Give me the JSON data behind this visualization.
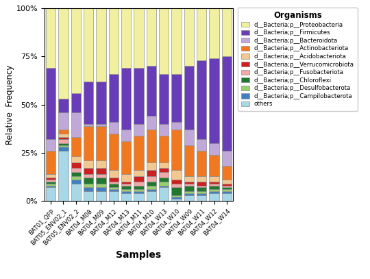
{
  "samples": [
    "BAT01_QFP",
    "BAT05_ENV02_1",
    "BAT05_ENV02_2",
    "BAT04_M08",
    "BAT04_M09",
    "BAT04_M12",
    "BAT04_M13",
    "BAT04_M11",
    "BAT04_M10",
    "BAT04_W13",
    "BAT04_W10",
    "BAT04_W09",
    "BAT04_W11",
    "BAT04_W12",
    "BAT04_W14"
  ],
  "organisms": [
    "d__Bacteria;p__Proteobacteria",
    "d__Bacteria;p__Firmicutes",
    "d__Bacteria;p__Bacteroidota",
    "d__Bacteria;p__Actinobacteriota",
    "d__Bacteria;p__Acidobacteriota",
    "d__Bacteria;p__Verrucomicrobiota",
    "d__Bacteria;p__Fusobacteriota",
    "d__Bacteria;p__Chloroflexi",
    "d__Bacteria;p__Desulfobacterota",
    "d__Bacteria;p__Campilobacterota",
    "others"
  ],
  "colors": [
    "#f0f0a0",
    "#6a3db8",
    "#c0a8d8",
    "#f07820",
    "#f0c890",
    "#cc2020",
    "#f0a8a8",
    "#207830",
    "#98d070",
    "#4080c0",
    "#a8d8e8"
  ],
  "stack_order": [
    "others",
    "d__Bacteria;p__Campilobacterota",
    "d__Bacteria;p__Desulfobacterota",
    "d__Bacteria;p__Chloroflexi",
    "d__Bacteria;p__Fusobacteriota",
    "d__Bacteria;p__Verrucomicrobiota",
    "d__Bacteria;p__Acidobacteriota",
    "d__Bacteria;p__Actinobacteriota",
    "d__Bacteria;p__Bacteroidota",
    "d__Bacteria;p__Firmicutes",
    "d__Bacteria;p__Proteobacteria"
  ],
  "data": {
    "d__Bacteria;p__Proteobacteria": [
      0.31,
      0.47,
      0.44,
      0.38,
      0.38,
      0.34,
      0.31,
      0.31,
      0.3,
      0.34,
      0.34,
      0.3,
      0.27,
      0.26,
      0.25
    ],
    "d__Bacteria;p__Firmicutes": [
      0.37,
      0.07,
      0.1,
      0.22,
      0.22,
      0.25,
      0.32,
      0.29,
      0.26,
      0.26,
      0.25,
      0.33,
      0.41,
      0.44,
      0.49
    ],
    "d__Bacteria;p__Bacteroidota": [
      0.06,
      0.09,
      0.13,
      0.01,
      0.01,
      0.06,
      0.06,
      0.06,
      0.07,
      0.06,
      0.04,
      0.08,
      0.06,
      0.06,
      0.08
    ],
    "d__Bacteria;p__Actinobacteriota": [
      0.12,
      0.02,
      0.1,
      0.18,
      0.18,
      0.19,
      0.17,
      0.18,
      0.17,
      0.14,
      0.21,
      0.16,
      0.13,
      0.11,
      0.07
    ],
    "d__Bacteria;p__Acidobacteriota": [
      0.02,
      0.02,
      0.03,
      0.04,
      0.04,
      0.04,
      0.04,
      0.03,
      0.04,
      0.03,
      0.05,
      0.03,
      0.03,
      0.03,
      0.02
    ],
    "d__Bacteria;p__Verrucomicrobiota": [
      0.01,
      0.01,
      0.03,
      0.03,
      0.03,
      0.02,
      0.01,
      0.03,
      0.03,
      0.02,
      0.02,
      0.01,
      0.02,
      0.01,
      0.01
    ],
    "d__Bacteria;p__Fusobacteriota": [
      0.01,
      0.02,
      0.02,
      0.02,
      0.02,
      0.01,
      0.01,
      0.02,
      0.03,
      0.03,
      0.02,
      0.01,
      0.01,
      0.01,
      0.01
    ],
    "d__Bacteria;p__Chloroflexi": [
      0.01,
      0.01,
      0.02,
      0.03,
      0.03,
      0.02,
      0.02,
      0.02,
      0.02,
      0.02,
      0.04,
      0.03,
      0.02,
      0.02,
      0.01
    ],
    "d__Bacteria;p__Desulfobacterota": [
      0.01,
      0.01,
      0.02,
      0.02,
      0.02,
      0.01,
      0.01,
      0.01,
      0.02,
      0.02,
      0.01,
      0.01,
      0.01,
      0.01,
      0.01
    ],
    "d__Bacteria;p__Campilobacterota": [
      0.01,
      0.02,
      0.02,
      0.02,
      0.02,
      0.01,
      0.01,
      0.01,
      0.01,
      0.01,
      0.01,
      0.01,
      0.01,
      0.01,
      0.01
    ],
    "others": [
      0.07,
      0.26,
      0.09,
      0.05,
      0.05,
      0.05,
      0.04,
      0.04,
      0.05,
      0.07,
      0.01,
      0.03,
      0.03,
      0.04,
      0.04
    ]
  },
  "ylabel": "Relative  Frequency",
  "xlabel": "Samples",
  "legend_title": "Organisms",
  "yticks": [
    0.0,
    0.25,
    0.5,
    0.75,
    1.0
  ],
  "ytick_labels": [
    "0%",
    "25%",
    "50%",
    "75%",
    "100%"
  ],
  "figsize": [
    5.4,
    4.07
  ],
  "dpi": 100
}
